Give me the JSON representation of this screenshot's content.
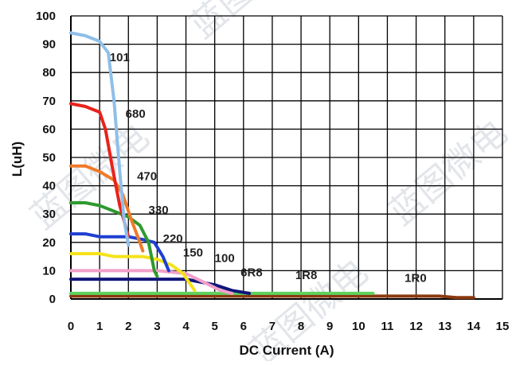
{
  "chart_data": {
    "type": "line",
    "title": "",
    "xlabel": "DC Current (A)",
    "ylabel": "L(uH)",
    "xlim": [
      0,
      15
    ],
    "ylim": [
      0,
      100
    ],
    "xticks": [
      "0",
      "1",
      "2",
      "3",
      "4",
      "5",
      "6",
      "7",
      "8",
      "9",
      "10",
      "11",
      "12",
      "13",
      "14",
      "15"
    ],
    "yticks": [
      "0",
      "10",
      "20",
      "30",
      "40",
      "50",
      "60",
      "70",
      "80",
      "90",
      "100"
    ],
    "grid": true,
    "legend": "labels on curves",
    "series": [
      {
        "name": "101",
        "color": "#8fbfe8",
        "x": [
          0,
          0.5,
          1.0,
          1.3,
          1.5,
          1.7,
          1.85,
          2.0
        ],
        "y": [
          94,
          93,
          91,
          87,
          70,
          45,
          28,
          19
        ]
      },
      {
        "name": "680",
        "color": "#e8221c",
        "x": [
          0,
          0.5,
          1.0,
          1.2,
          1.45,
          1.7,
          2.0
        ],
        "y": [
          69,
          68,
          66,
          60,
          46,
          33,
          22
        ]
      },
      {
        "name": "470",
        "color": "#f07a2a",
        "x": [
          0,
          0.5,
          1.0,
          1.5,
          1.8,
          2.1,
          2.4,
          2.5
        ],
        "y": [
          47,
          47,
          45,
          42,
          37,
          28,
          20,
          17
        ]
      },
      {
        "name": "330",
        "color": "#2e9a2e",
        "x": [
          0,
          0.5,
          1.0,
          1.5,
          2.0,
          2.4,
          2.7,
          2.9,
          3.0
        ],
        "y": [
          34,
          34,
          33,
          31,
          29,
          26,
          20,
          10,
          8
        ]
      },
      {
        "name": "220",
        "color": "#1f3fd0",
        "x": [
          0,
          0.5,
          1.0,
          1.5,
          2.0,
          2.5,
          2.9,
          3.2,
          3.4
        ],
        "y": [
          23,
          23,
          22,
          22,
          22,
          21,
          20,
          15,
          10
        ]
      },
      {
        "name": "150",
        "color": "#f5e21a",
        "x": [
          0,
          0.5,
          1.0,
          1.5,
          2.0,
          2.5,
          3.0,
          3.5,
          3.9,
          4.1,
          4.3
        ],
        "y": [
          16,
          16,
          16,
          15,
          15,
          15,
          14,
          12,
          9,
          6,
          3
        ]
      },
      {
        "name": "100",
        "color": "#f1a0c8",
        "x": [
          0,
          0.5,
          1.0,
          2.0,
          3.0,
          4.0,
          4.6,
          5.2,
          5.6
        ],
        "y": [
          10,
          10,
          10,
          10,
          10,
          9,
          6,
          3,
          2
        ]
      },
      {
        "name": "6R8",
        "color": "#10157a",
        "x": [
          0,
          1.0,
          2.0,
          3.0,
          4.0,
          5.0,
          5.6,
          6.2
        ],
        "y": [
          7,
          7,
          7,
          7,
          7,
          5,
          3,
          2
        ]
      },
      {
        "name": "1R8",
        "color": "#5ed35e",
        "x": [
          0,
          2.0,
          4.0,
          6.0,
          8.0,
          9.5,
          10.5
        ],
        "y": [
          2,
          2,
          2,
          2,
          2,
          2,
          2
        ]
      },
      {
        "name": "1R0",
        "color": "#8b3a10",
        "x": [
          0,
          2.0,
          4.0,
          6.0,
          8.0,
          10.0,
          12.0,
          12.8,
          13.4,
          14.0
        ],
        "y": [
          1,
          1,
          1,
          1,
          1,
          1,
          1,
          1,
          0.5,
          0.5
        ]
      }
    ]
  },
  "watermark_text": "蓝图微电"
}
